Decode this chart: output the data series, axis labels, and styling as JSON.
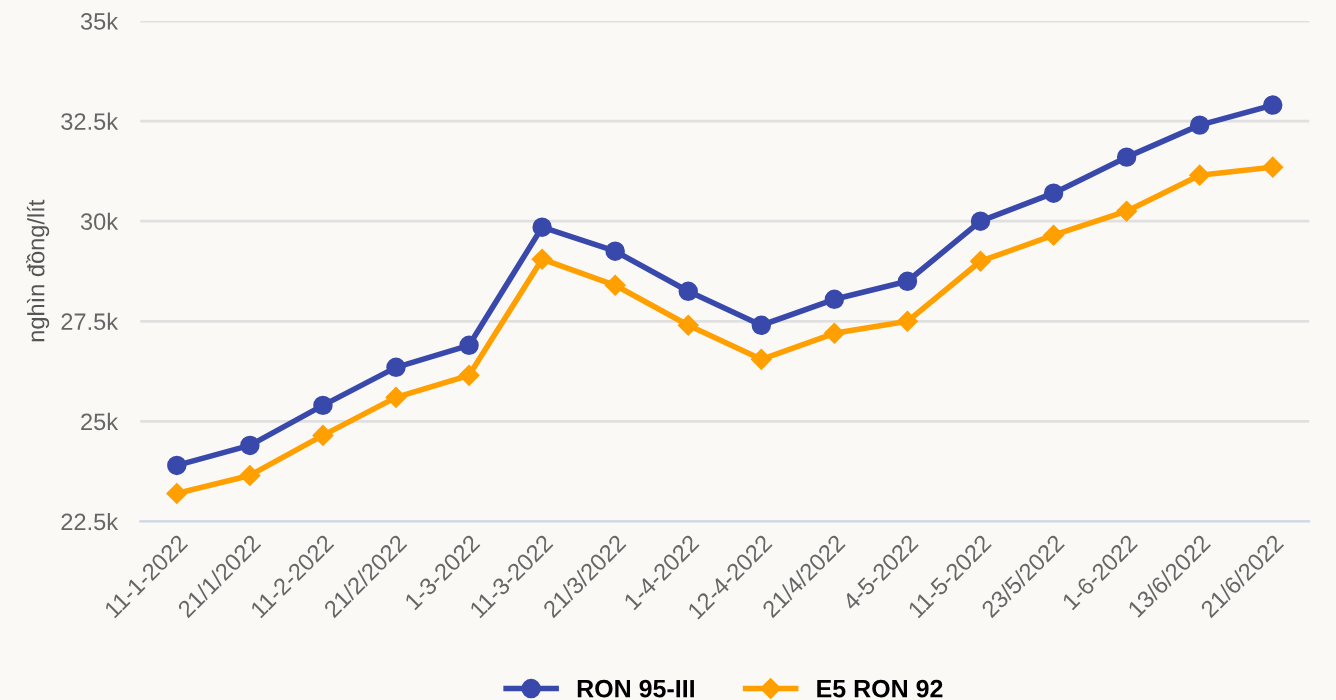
{
  "chart_data": {
    "type": "line",
    "ylabel": "nghìn đồng/lít",
    "categories": [
      "11-1-2022",
      "21/1/2022",
      "11-2-2022",
      "21/2/2022",
      "1-3-2022",
      "11-3-2022",
      "21/3/2022",
      "1-4-2022",
      "12-4-2022",
      "21/4/2022",
      "4-5-2022",
      "11-5-2022",
      "23/5/2022",
      "1-6-2022",
      "13/6/2022",
      "21/6/2022"
    ],
    "series": [
      {
        "name": "RON 95-III",
        "color": "#3949ab",
        "marker": "circle",
        "values": [
          23900,
          24400,
          25400,
          26350,
          26900,
          29850,
          29250,
          28250,
          27400,
          28050,
          28500,
          30000,
          30700,
          31600,
          32400,
          32900
        ]
      },
      {
        "name": "E5 RON 92",
        "color": "#ffa000",
        "marker": "diamond",
        "values": [
          23200,
          23650,
          24650,
          25600,
          26150,
          29050,
          28400,
          27400,
          26550,
          27200,
          27500,
          29000,
          29650,
          30250,
          31150,
          31350
        ]
      }
    ],
    "ylim": [
      22500,
      35000
    ],
    "yticks": [
      {
        "value": 22500,
        "label": "22.5k"
      },
      {
        "value": 25000,
        "label": "25k"
      },
      {
        "value": 27500,
        "label": "27.5k"
      },
      {
        "value": 30000,
        "label": "30k"
      },
      {
        "value": 32500,
        "label": "32.5k"
      },
      {
        "value": 35000,
        "label": "35k"
      }
    ],
    "grid": "y",
    "legend": "bottom",
    "line_style": "solid"
  }
}
